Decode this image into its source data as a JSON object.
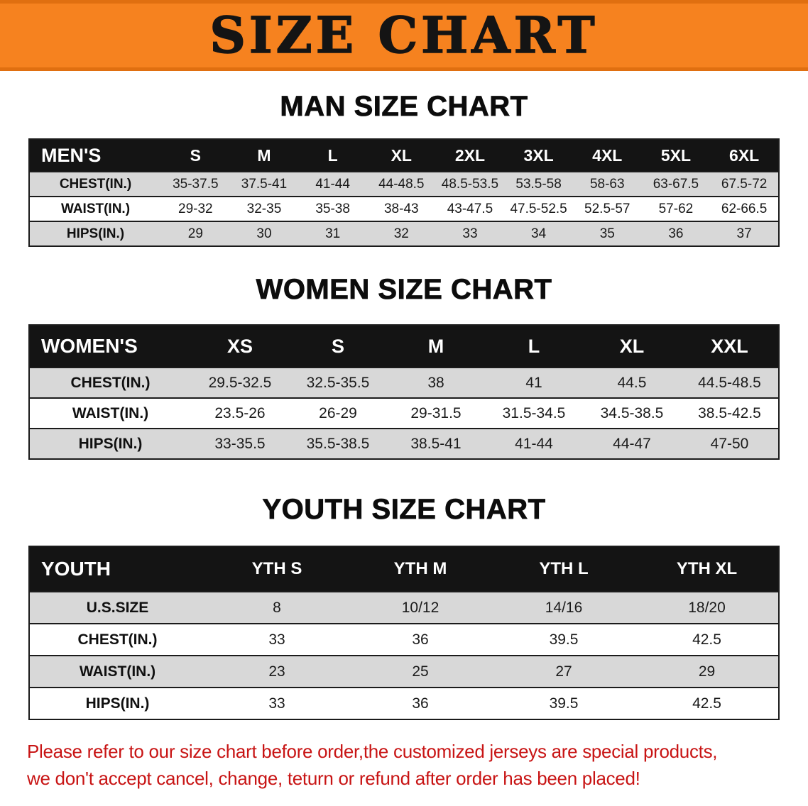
{
  "banner": {
    "title": "SIZE CHART"
  },
  "sections": [
    {
      "heading": "MAN SIZE CHART",
      "table": {
        "header": [
          "MEN'S",
          "S",
          "M",
          "L",
          "XL",
          "2XL",
          "3XL",
          "4XL",
          "5XL",
          "6XL"
        ],
        "rows": [
          {
            "label": "CHEST(IN.)",
            "values": [
              "35-37.5",
              "37.5-41",
              "41-44",
              "44-48.5",
              "48.5-53.5",
              "53.5-58",
              "58-63",
              "63-67.5",
              "67.5-72"
            ]
          },
          {
            "label": "WAIST(IN.)",
            "values": [
              "29-32",
              "32-35",
              "35-38",
              "38-43",
              "43-47.5",
              "47.5-52.5",
              "52.5-57",
              "57-62",
              "62-66.5"
            ]
          },
          {
            "label": "HIPS(IN.)",
            "values": [
              "29",
              "30",
              "31",
              "32",
              "33",
              "34",
              "35",
              "36",
              "37"
            ]
          }
        ]
      }
    },
    {
      "heading": "WOMEN SIZE CHART",
      "table": {
        "header": [
          "WOMEN'S",
          "XS",
          "S",
          "M",
          "L",
          "XL",
          "XXL"
        ],
        "rows": [
          {
            "label": "CHEST(IN.)",
            "values": [
              "29.5-32.5",
              "32.5-35.5",
              "38",
              "41",
              "44.5",
              "44.5-48.5"
            ]
          },
          {
            "label": "WAIST(IN.)",
            "values": [
              "23.5-26",
              "26-29",
              "29-31.5",
              "31.5-34.5",
              "34.5-38.5",
              "38.5-42.5"
            ]
          },
          {
            "label": "HIPS(IN.)",
            "values": [
              "33-35.5",
              "35.5-38.5",
              "38.5-41",
              "41-44",
              "44-47",
              "47-50"
            ]
          }
        ]
      }
    },
    {
      "heading": "YOUTH SIZE CHART",
      "table": {
        "header": [
          "YOUTH",
          "YTH S",
          "YTH M",
          "YTH L",
          "YTH XL"
        ],
        "rows": [
          {
            "label": "U.S.SIZE",
            "values": [
              "8",
              "10/12",
              "14/16",
              "18/20"
            ]
          },
          {
            "label": "CHEST(IN.)",
            "values": [
              "33",
              "36",
              "39.5",
              "42.5"
            ]
          },
          {
            "label": "WAIST(IN.)",
            "values": [
              "23",
              "25",
              "27",
              "29"
            ]
          },
          {
            "label": "HIPS(IN.)",
            "values": [
              "33",
              "36",
              "39.5",
              "42.5"
            ]
          }
        ]
      }
    }
  ],
  "notice": {
    "lines": [
      "Please refer to our size chart before order,the customized jerseys are special products,",
      "we don't accept cancel, change, teturn or refund after order has been placed!"
    ]
  },
  "colors": {
    "banner_bg": "#f6821f",
    "banner_border": "#e06f10",
    "table_header_bg": "#141414",
    "stripe_gray": "#d8d8d8",
    "notice_red": "#c81414"
  }
}
